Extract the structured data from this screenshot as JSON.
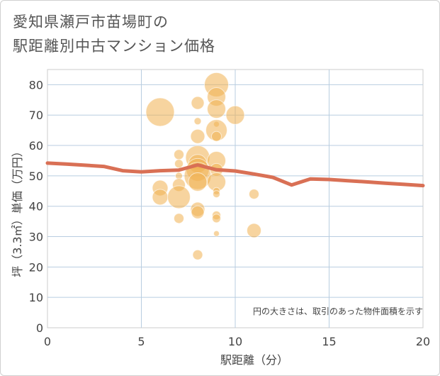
{
  "title_line1": "愛知県瀬戸市苗場町の",
  "title_line2": "駅距離別中古マンション価格",
  "chart_data": {
    "type": "scatter",
    "title": "愛知県瀬戸市苗場町の駅距離別中古マンション価格",
    "xlabel": "駅距離（分）",
    "ylabel": "坪（3.3㎡）単価（万円）",
    "xlim": [
      0,
      20
    ],
    "ylim": [
      0,
      85
    ],
    "xticks": [
      0,
      5,
      10,
      15,
      20
    ],
    "yticks": [
      0,
      10,
      20,
      30,
      40,
      50,
      60,
      70,
      80
    ],
    "grid": true,
    "note": "円の大きさは、取引のあった物件面積を示す",
    "bubble_color": "#f0b050",
    "line_color": "#d97055",
    "bubbles": [
      {
        "x": 6,
        "y": 71,
        "size": 20
      },
      {
        "x": 6,
        "y": 46,
        "size": 11
      },
      {
        "x": 6,
        "y": 43,
        "size": 11
      },
      {
        "x": 7,
        "y": 57,
        "size": 7
      },
      {
        "x": 7,
        "y": 54,
        "size": 6
      },
      {
        "x": 7,
        "y": 50,
        "size": 5
      },
      {
        "x": 7,
        "y": 47,
        "size": 9
      },
      {
        "x": 7,
        "y": 43,
        "size": 16
      },
      {
        "x": 7,
        "y": 36,
        "size": 7
      },
      {
        "x": 8,
        "y": 74,
        "size": 9
      },
      {
        "x": 8,
        "y": 68,
        "size": 5
      },
      {
        "x": 8,
        "y": 63,
        "size": 10
      },
      {
        "x": 8,
        "y": 56,
        "size": 17
      },
      {
        "x": 8,
        "y": 54,
        "size": 13
      },
      {
        "x": 8,
        "y": 52,
        "size": 16
      },
      {
        "x": 8,
        "y": 50,
        "size": 19
      },
      {
        "x": 8,
        "y": 48,
        "size": 13
      },
      {
        "x": 8,
        "y": 39,
        "size": 10
      },
      {
        "x": 8,
        "y": 38,
        "size": 9
      },
      {
        "x": 8,
        "y": 24,
        "size": 7
      },
      {
        "x": 9,
        "y": 80,
        "size": 17
      },
      {
        "x": 9,
        "y": 76,
        "size": 13
      },
      {
        "x": 9,
        "y": 72,
        "size": 13
      },
      {
        "x": 9,
        "y": 67,
        "size": 4
      },
      {
        "x": 9,
        "y": 65,
        "size": 15
      },
      {
        "x": 9,
        "y": 63,
        "size": 7
      },
      {
        "x": 9,
        "y": 55,
        "size": 13
      },
      {
        "x": 9,
        "y": 52,
        "size": 9
      },
      {
        "x": 9,
        "y": 48,
        "size": 13
      },
      {
        "x": 9,
        "y": 45,
        "size": 5
      },
      {
        "x": 9,
        "y": 44,
        "size": 5
      },
      {
        "x": 9,
        "y": 37,
        "size": 6
      },
      {
        "x": 9,
        "y": 36,
        "size": 6
      },
      {
        "x": 9,
        "y": 31,
        "size": 4
      },
      {
        "x": 10,
        "y": 70,
        "size": 13
      },
      {
        "x": 11,
        "y": 44,
        "size": 7
      },
      {
        "x": 11,
        "y": 32,
        "size": 10
      }
    ],
    "trend_line": [
      {
        "x": 0,
        "y": 54.2
      },
      {
        "x": 1,
        "y": 53.9
      },
      {
        "x": 2,
        "y": 53.5
      },
      {
        "x": 3,
        "y": 53.1
      },
      {
        "x": 4,
        "y": 51.7
      },
      {
        "x": 5,
        "y": 51.3
      },
      {
        "x": 6,
        "y": 51.7
      },
      {
        "x": 7,
        "y": 51.9
      },
      {
        "x": 8,
        "y": 53.6
      },
      {
        "x": 9,
        "y": 52.0
      },
      {
        "x": 10,
        "y": 51.6
      },
      {
        "x": 11,
        "y": 50.6
      },
      {
        "x": 12,
        "y": 49.5
      },
      {
        "x": 13,
        "y": 47.0
      },
      {
        "x": 14,
        "y": 49.0
      },
      {
        "x": 15,
        "y": 48.8
      },
      {
        "x": 16,
        "y": 48.4
      },
      {
        "x": 17,
        "y": 48.0
      },
      {
        "x": 18,
        "y": 47.6
      },
      {
        "x": 19,
        "y": 47.2
      },
      {
        "x": 20,
        "y": 46.8
      }
    ]
  }
}
